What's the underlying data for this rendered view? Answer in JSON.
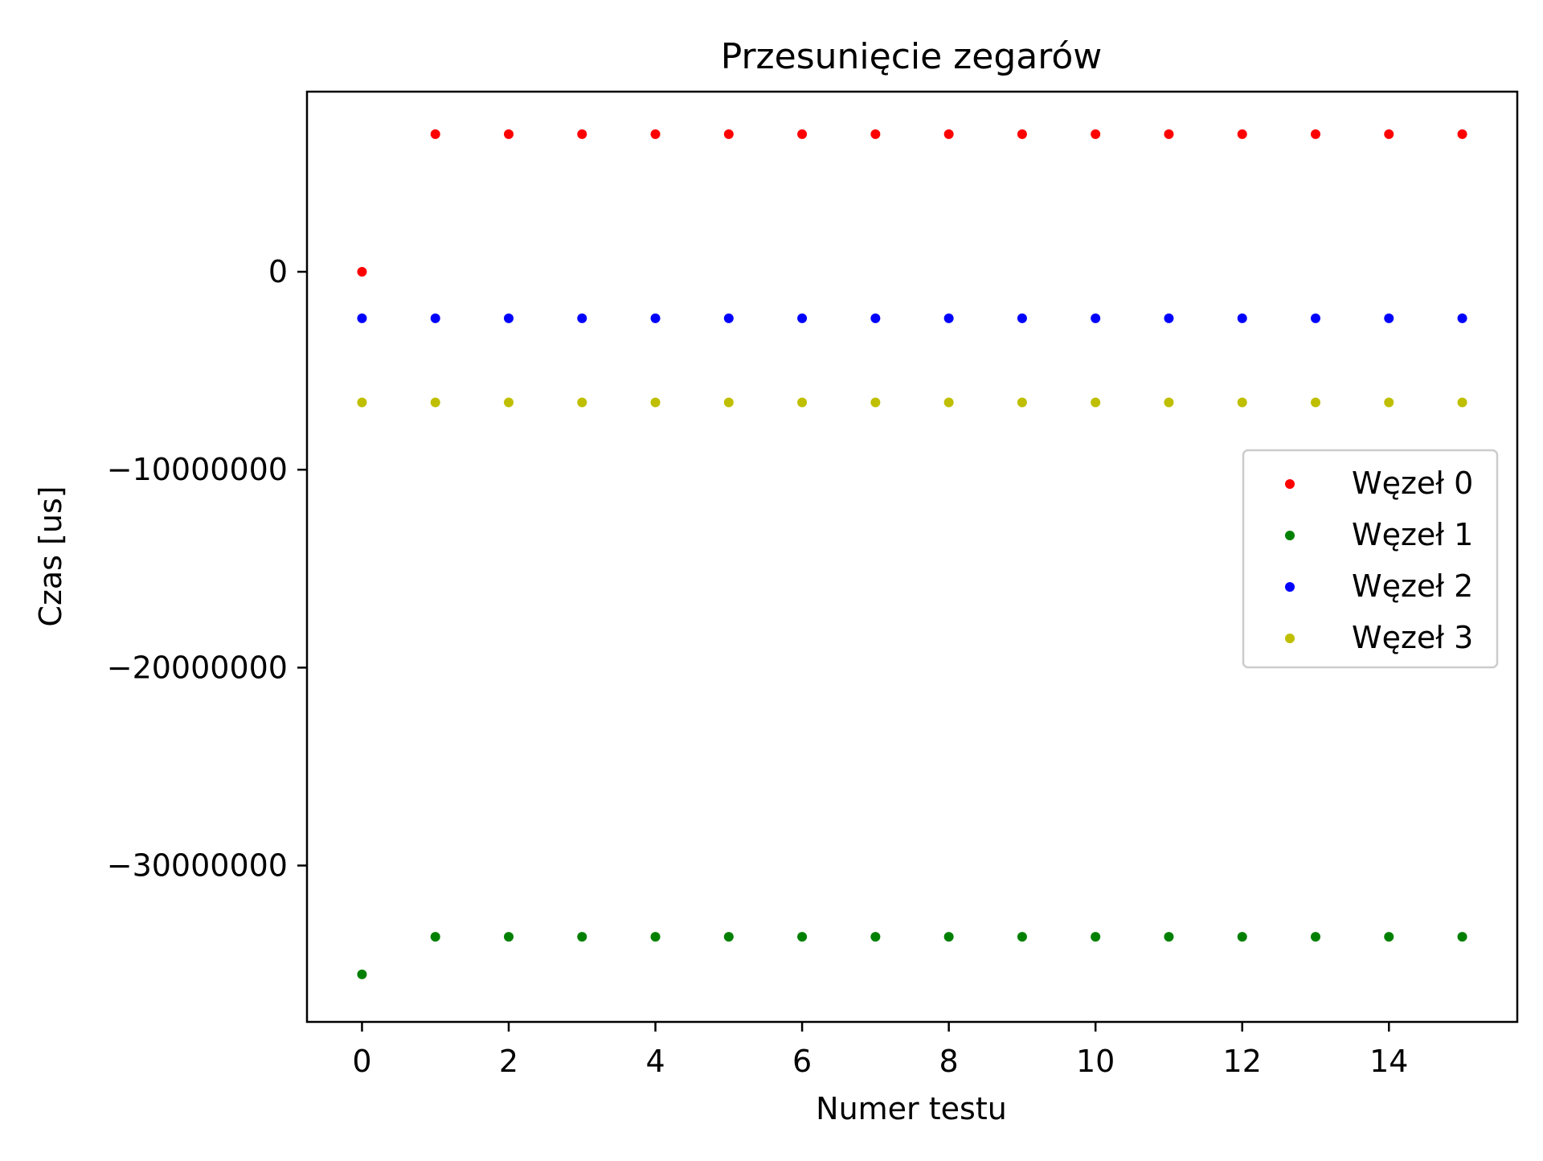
{
  "chart_data": {
    "type": "scatter",
    "title": "Przesunięcie zegarów",
    "xlabel": "Numer testu",
    "ylabel": "Czas [us]",
    "xlim": [
      -0.75,
      15.75
    ],
    "ylim": [
      -37900000,
      9100000
    ],
    "xticks": [
      0,
      2,
      4,
      6,
      8,
      10,
      12,
      14
    ],
    "xtick_labels": [
      "0",
      "2",
      "4",
      "6",
      "8",
      "10",
      "12",
      "14"
    ],
    "yticks": [
      0,
      -10000000,
      -20000000,
      -30000000
    ],
    "ytick_labels": [
      "0",
      "−10000000",
      "−20000000",
      "−30000000"
    ],
    "grid": false,
    "legend_position": "right",
    "x": [
      0,
      1,
      2,
      3,
      4,
      5,
      6,
      7,
      8,
      9,
      10,
      11,
      12,
      13,
      14,
      15
    ],
    "series": [
      {
        "name": "Węzeł 0",
        "color": "#ff0000",
        "values": [
          0,
          6950000,
          6950000,
          6950000,
          6950000,
          6950000,
          6950000,
          6950000,
          6950000,
          6950000,
          6950000,
          6950000,
          6950000,
          6950000,
          6950000,
          6950000
        ]
      },
      {
        "name": "Węzeł 1",
        "color": "#008000",
        "values": [
          -35500000,
          -33600000,
          -33600000,
          -33600000,
          -33600000,
          -33600000,
          -33600000,
          -33600000,
          -33600000,
          -33600000,
          -33600000,
          -33600000,
          -33600000,
          -33600000,
          -33600000,
          -33600000
        ]
      },
      {
        "name": "Węzeł 2",
        "color": "#0000ff",
        "values": [
          -2350000,
          -2350000,
          -2350000,
          -2350000,
          -2350000,
          -2350000,
          -2350000,
          -2350000,
          -2350000,
          -2350000,
          -2350000,
          -2350000,
          -2350000,
          -2350000,
          -2350000,
          -2350000
        ]
      },
      {
        "name": "Węzeł 3",
        "color": "#bfbf00",
        "values": [
          -6600000,
          -6600000,
          -6600000,
          -6600000,
          -6600000,
          -6600000,
          -6600000,
          -6600000,
          -6600000,
          -6600000,
          -6600000,
          -6600000,
          -6600000,
          -6600000,
          -6600000,
          -6600000
        ]
      }
    ]
  }
}
